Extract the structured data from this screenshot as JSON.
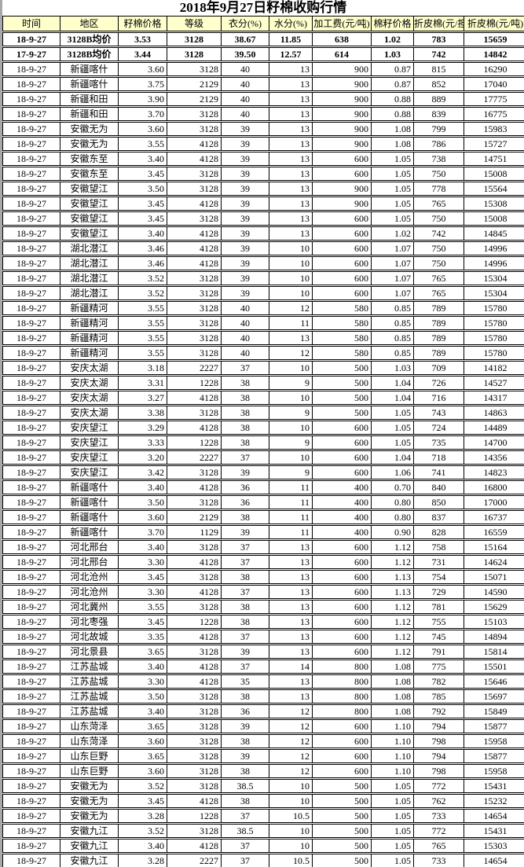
{
  "colors": {
    "header_bg": "#FFFFCC",
    "grid": "#000000",
    "left_strip": "#A8A8A8",
    "background": "#FFFFFF",
    "text": "#000000"
  },
  "chart_data": {
    "type": "table",
    "title": "2018年9月27日籽棉收购行情",
    "columns": [
      "时间",
      "地区",
      "籽棉价格",
      "等级",
      "衣分(%)",
      "水分(%)",
      "加工费(元/吨)",
      "棉籽价格",
      "折皮棉(元/担)",
      "折皮棉(元/吨)"
    ],
    "summary_rows": [
      [
        "18-9-27",
        "3128B均价",
        "3.53",
        "3128",
        "38.67",
        "11.85",
        "638",
        "1.02",
        "783",
        "15659"
      ],
      [
        "17-9-27",
        "3128B均价",
        "3.44",
        "3128",
        "39.50",
        "12.57",
        "614",
        "1.03",
        "742",
        "14842"
      ]
    ],
    "rows": [
      [
        "18-9-27",
        "新疆喀什",
        "3.60",
        "3128",
        "40",
        "13",
        "900",
        "0.87",
        "815",
        "16290"
      ],
      [
        "18-9-27",
        "新疆喀什",
        "3.75",
        "2129",
        "40",
        "13",
        "900",
        "0.87",
        "852",
        "17040"
      ],
      [
        "18-9-27",
        "新疆和田",
        "3.90",
        "2129",
        "40",
        "13",
        "900",
        "0.88",
        "889",
        "17775"
      ],
      [
        "18-9-27",
        "新疆和田",
        "3.70",
        "3128",
        "40",
        "13",
        "900",
        "0.88",
        "839",
        "16775"
      ],
      [
        "18-9-27",
        "安徽无为",
        "3.60",
        "3128",
        "39",
        "13",
        "900",
        "1.08",
        "799",
        "15983"
      ],
      [
        "18-9-27",
        "安徽无为",
        "3.55",
        "4128",
        "39",
        "13",
        "900",
        "1.08",
        "786",
        "15727"
      ],
      [
        "18-9-27",
        "安徽东至",
        "3.40",
        "4128",
        "39",
        "13",
        "600",
        "1.05",
        "738",
        "14751"
      ],
      [
        "18-9-27",
        "安徽东至",
        "3.45",
        "3128",
        "39",
        "13",
        "600",
        "1.05",
        "750",
        "15008"
      ],
      [
        "18-9-27",
        "安徽望江",
        "3.50",
        "3128",
        "39",
        "13",
        "900",
        "1.05",
        "778",
        "15564"
      ],
      [
        "18-9-27",
        "安徽望江",
        "3.45",
        "4128",
        "39",
        "13",
        "900",
        "1.05",
        "765",
        "15308"
      ],
      [
        "18-9-27",
        "安徽望江",
        "3.45",
        "3128",
        "39",
        "13",
        "600",
        "1.05",
        "750",
        "15008"
      ],
      [
        "18-9-27",
        "安徽望江",
        "3.40",
        "4128",
        "39",
        "13",
        "600",
        "1.02",
        "742",
        "14845"
      ],
      [
        "18-9-27",
        "湖北潜江",
        "3.46",
        "4128",
        "39",
        "10",
        "600",
        "1.07",
        "750",
        "14996"
      ],
      [
        "18-9-27",
        "湖北潜江",
        "3.46",
        "4128",
        "39",
        "10",
        "600",
        "1.07",
        "750",
        "14996"
      ],
      [
        "18-9-27",
        "湖北潜江",
        "3.52",
        "3128",
        "39",
        "10",
        "600",
        "1.07",
        "765",
        "15304"
      ],
      [
        "18-9-27",
        "湖北潜江",
        "3.52",
        "3128",
        "39",
        "10",
        "600",
        "1.07",
        "765",
        "15304"
      ],
      [
        "18-9-27",
        "新疆精河",
        "3.55",
        "3128",
        "40",
        "12",
        "580",
        "0.85",
        "789",
        "15780"
      ],
      [
        "18-9-27",
        "新疆精河",
        "3.55",
        "3128",
        "40",
        "11",
        "580",
        "0.85",
        "789",
        "15780"
      ],
      [
        "18-9-27",
        "新疆精河",
        "3.55",
        "3128",
        "40",
        "13",
        "580",
        "0.85",
        "789",
        "15780"
      ],
      [
        "18-9-27",
        "新疆精河",
        "3.55",
        "3128",
        "40",
        "12",
        "580",
        "0.85",
        "789",
        "15780"
      ],
      [
        "18-9-27",
        "安庆太湖",
        "3.18",
        "2227",
        "37",
        "10",
        "500",
        "1.03",
        "709",
        "14182"
      ],
      [
        "18-9-27",
        "安庆太湖",
        "3.31",
        "1228",
        "38",
        "9",
        "500",
        "1.04",
        "726",
        "14527"
      ],
      [
        "18-9-27",
        "安庆太湖",
        "3.27",
        "4128",
        "38",
        "10",
        "500",
        "1.04",
        "716",
        "14317"
      ],
      [
        "18-9-27",
        "安庆太湖",
        "3.38",
        "3128",
        "38",
        "9",
        "500",
        "1.05",
        "743",
        "14863"
      ],
      [
        "18-9-27",
        "安庆望江",
        "3.29",
        "4128",
        "38",
        "10",
        "600",
        "1.05",
        "724",
        "14489"
      ],
      [
        "18-9-27",
        "安庆望江",
        "3.33",
        "1228",
        "38",
        "9",
        "600",
        "1.05",
        "735",
        "14700"
      ],
      [
        "18-9-27",
        "安庆望江",
        "3.20",
        "2227",
        "37",
        "10",
        "600",
        "1.04",
        "718",
        "14356"
      ],
      [
        "18-9-27",
        "安庆望江",
        "3.42",
        "3128",
        "39",
        "9",
        "600",
        "1.06",
        "741",
        "14823"
      ],
      [
        "18-9-27",
        "新疆喀什",
        "3.40",
        "4128",
        "36",
        "11",
        "400",
        "0.70",
        "840",
        "16800"
      ],
      [
        "18-9-27",
        "新疆喀什",
        "3.50",
        "3128",
        "36",
        "11",
        "400",
        "0.80",
        "850",
        "17000"
      ],
      [
        "18-9-27",
        "新疆喀什",
        "3.60",
        "2129",
        "38",
        "11",
        "400",
        "0.80",
        "837",
        "16737"
      ],
      [
        "18-9-27",
        "新疆喀什",
        "3.70",
        "1129",
        "39",
        "11",
        "400",
        "0.90",
        "828",
        "16559"
      ],
      [
        "18-9-27",
        "河北邢台",
        "3.40",
        "3128",
        "37",
        "13",
        "600",
        "1.12",
        "758",
        "15164"
      ],
      [
        "18-9-27",
        "河北邢台",
        "3.30",
        "4128",
        "37",
        "13",
        "600",
        "1.12",
        "731",
        "14624"
      ],
      [
        "18-9-27",
        "河北沧州",
        "3.45",
        "3128",
        "38",
        "13",
        "600",
        "1.13",
        "754",
        "15071"
      ],
      [
        "18-9-27",
        "河北沧州",
        "3.30",
        "4128",
        "37",
        "13",
        "600",
        "1.13",
        "729",
        "14590"
      ],
      [
        "18-9-27",
        "河北冀州",
        "3.55",
        "3128",
        "38",
        "13",
        "600",
        "1.12",
        "781",
        "15629"
      ],
      [
        "18-9-27",
        "河北枣强",
        "3.45",
        "1228",
        "38",
        "13",
        "600",
        "1.12",
        "755",
        "15103"
      ],
      [
        "18-9-27",
        "河北故城",
        "3.35",
        "4128",
        "37",
        "13",
        "600",
        "1.12",
        "745",
        "14894"
      ],
      [
        "18-9-27",
        "河北景县",
        "3.65",
        "3128",
        "39",
        "13",
        "600",
        "1.12",
        "791",
        "15814"
      ],
      [
        "18-9-27",
        "江苏盐城",
        "3.40",
        "4128",
        "37",
        "14",
        "800",
        "1.08",
        "775",
        "15501"
      ],
      [
        "18-9-27",
        "江苏盐城",
        "3.30",
        "4128",
        "35",
        "13",
        "800",
        "1.08",
        "782",
        "15646"
      ],
      [
        "18-9-27",
        "江苏盐城",
        "3.50",
        "3128",
        "38",
        "13",
        "800",
        "1.08",
        "785",
        "15697"
      ],
      [
        "18-9-27",
        "江苏盐城",
        "3.40",
        "3128",
        "36",
        "12",
        "800",
        "1.08",
        "792",
        "15849"
      ],
      [
        "18-9-27",
        "山东菏泽",
        "3.65",
        "3128",
        "39",
        "12",
        "600",
        "1.10",
        "794",
        "15877"
      ],
      [
        "18-9-27",
        "山东菏泽",
        "3.60",
        "3128",
        "38",
        "12",
        "600",
        "1.10",
        "798",
        "15958"
      ],
      [
        "18-9-27",
        "山东巨野",
        "3.65",
        "3128",
        "39",
        "12",
        "600",
        "1.10",
        "794",
        "15877"
      ],
      [
        "18-9-27",
        "山东巨野",
        "3.60",
        "3128",
        "38",
        "12",
        "600",
        "1.10",
        "798",
        "15958"
      ],
      [
        "18-9-27",
        "安徽无为",
        "3.52",
        "3128",
        "38.5",
        "10",
        "500",
        "1.05",
        "772",
        "15431"
      ],
      [
        "18-9-27",
        "安徽无为",
        "3.45",
        "4128",
        "38",
        "10",
        "500",
        "1.05",
        "762",
        "15232"
      ],
      [
        "18-9-27",
        "安徽无为",
        "3.28",
        "1228",
        "37",
        "10.5",
        "500",
        "1.05",
        "733",
        "14654"
      ],
      [
        "18-9-27",
        "安徽九江",
        "3.52",
        "3128",
        "38.5",
        "10",
        "500",
        "1.05",
        "772",
        "15431"
      ],
      [
        "18-9-27",
        "安徽九江",
        "3.40",
        "4128",
        "37",
        "10",
        "500",
        "1.05",
        "765",
        "15303"
      ],
      [
        "18-9-27",
        "安徽九江",
        "3.28",
        "2227",
        "37",
        "10.5",
        "500",
        "1.05",
        "733",
        "14654"
      ]
    ]
  }
}
